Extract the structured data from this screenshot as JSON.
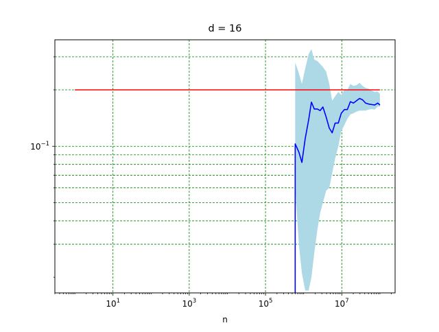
{
  "chart_data": {
    "type": "line",
    "title": "d = 16",
    "xlabel": "n",
    "ylabel": "",
    "xscale": "log",
    "yscale": "log",
    "xlim": [
      0.3,
      250000000
    ],
    "ylim": [
      0.0165,
      0.37
    ],
    "grid": true,
    "grid_color": "#008000",
    "grid_style": "dashed",
    "xticks": [
      {
        "value": 10,
        "base": "10",
        "exp": "1"
      },
      {
        "value": 1000,
        "base": "10",
        "exp": "3"
      },
      {
        "value": 100000,
        "base": "10",
        "exp": "5"
      },
      {
        "value": 10000000,
        "base": "10",
        "exp": "7"
      }
    ],
    "yticks_major": [
      {
        "value": 0.1,
        "base": "10",
        "exp": "−1"
      }
    ],
    "ygrid_values": [
      0.03,
      0.04,
      0.05,
      0.06,
      0.07,
      0.08,
      0.09,
      0.1,
      0.2,
      0.3
    ],
    "reference_line": {
      "color": "#ff0000",
      "x": [
        1,
        100000000
      ],
      "y": 0.2
    },
    "series": [
      {
        "color": "#0000ff",
        "band_color": "#add8e6",
        "x": [
          600000,
          600000,
          750000,
          900000,
          1100000,
          1350000,
          1600000,
          1900000,
          2300000,
          2700000,
          3200000,
          3900000,
          4700000,
          5600000,
          6700000,
          8100000,
          9700000,
          11700000,
          14000000,
          16800000,
          20200000,
          24300000,
          29200000,
          35000000,
          42000000,
          50500000,
          60700000,
          72900000,
          87600000,
          100000000
        ],
        "y": [
          0.01,
          0.103,
          0.093,
          0.082,
          0.11,
          0.138,
          0.172,
          0.158,
          0.158,
          0.155,
          0.162,
          0.143,
          0.125,
          0.118,
          0.133,
          0.133,
          0.15,
          0.157,
          0.157,
          0.173,
          0.17,
          0.175,
          0.18,
          0.177,
          0.17,
          0.168,
          0.167,
          0.166,
          0.17,
          0.166
        ],
        "lower": [
          0.01,
          0.06,
          0.03,
          0.021,
          0.017,
          0.017,
          0.02,
          0.027,
          0.036,
          0.044,
          0.05,
          0.058,
          0.06,
          0.072,
          0.086,
          0.1,
          0.12,
          0.13,
          0.14,
          0.148,
          0.15,
          0.153,
          0.155,
          0.155,
          0.155,
          0.157,
          0.158,
          0.157,
          0.163,
          0.163
        ],
        "upper": [
          0.01,
          0.28,
          0.245,
          0.215,
          0.26,
          0.31,
          0.33,
          0.29,
          0.285,
          0.275,
          0.265,
          0.25,
          0.215,
          0.175,
          0.185,
          0.195,
          0.188,
          0.2,
          0.2,
          0.215,
          0.21,
          0.212,
          0.218,
          0.21,
          0.205,
          0.203,
          0.198,
          0.195,
          0.196,
          0.19
        ]
      }
    ]
  }
}
